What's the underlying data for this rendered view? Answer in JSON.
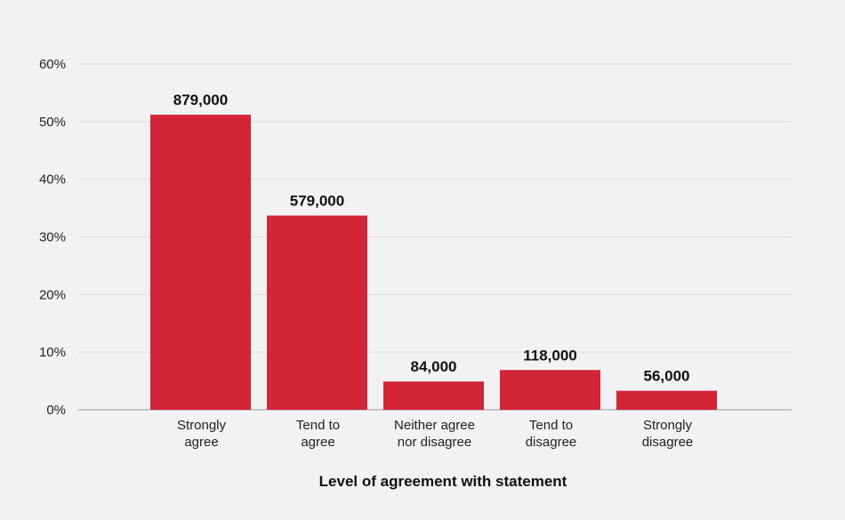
{
  "chart_data": {
    "type": "bar",
    "title": "",
    "xlabel": "Level of agreement with statement",
    "ylabel": "",
    "ylim": [
      0,
      60
    ],
    "yticks": [
      "0%",
      "10%",
      "20%",
      "30%",
      "40%",
      "50%",
      "60%"
    ],
    "grid": true,
    "categories": [
      [
        "Strongly",
        "agree"
      ],
      [
        "Tend to",
        "agree"
      ],
      [
        "Neither agree",
        "nor disagree"
      ],
      [
        "Tend to",
        "disagree"
      ],
      [
        "Strongly",
        "disagree"
      ]
    ],
    "values": [
      51.2,
      33.7,
      4.9,
      6.9,
      3.3
    ],
    "data_labels": [
      "879,000",
      "579,000",
      "84,000",
      "118,000",
      "56,000"
    ],
    "bar_color": "#d22537",
    "grid_color": "#dcdbe0",
    "axis_color": "#9a9aa0"
  }
}
